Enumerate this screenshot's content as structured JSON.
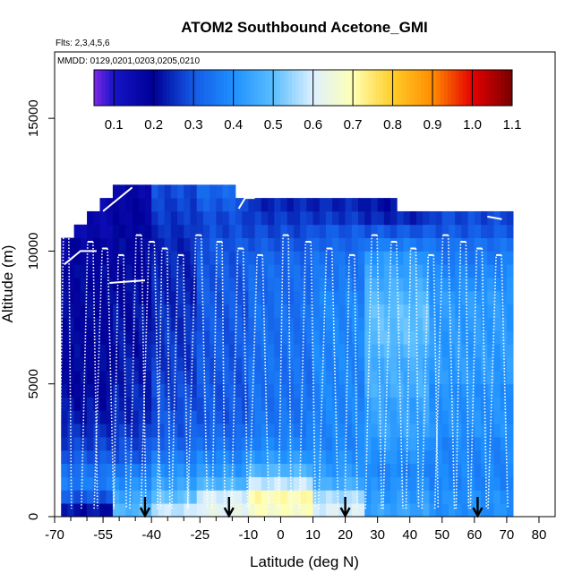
{
  "chart_data": {
    "type": "heatmap",
    "title": "ATOM2 Southbound Acetone_GMI",
    "flights_label": "Flts: 2,3,4,5,6",
    "dates_label": "MMDD: 0129,0201,0203,0205,0210",
    "xlabel": "Latitude (deg N)",
    "ylabel": "Altitude (m)",
    "xlim": [
      -70,
      85
    ],
    "ylim": [
      0,
      17500
    ],
    "x_ticks": [
      -70,
      -55,
      -40,
      -25,
      -10,
      0,
      10,
      20,
      30,
      40,
      50,
      60,
      70,
      80
    ],
    "x_tick_labels": [
      "-70",
      "-55",
      "-40",
      "-25",
      "-10",
      "0",
      "10",
      "20",
      "30",
      "40",
      "50",
      "60",
      "70",
      "80"
    ],
    "x_minor_ticks": [
      -65,
      -60,
      -50,
      -45,
      -35,
      -30,
      -20,
      -15,
      -5
    ],
    "y_ticks": [
      0,
      5000,
      10000,
      15000
    ],
    "y_tick_labels": [
      "0",
      "5000",
      "10000",
      "15000"
    ],
    "colorbar": {
      "min": 0.05,
      "max": 1.1,
      "ticks": [
        0.1,
        0.2,
        0.3,
        0.4,
        0.5,
        0.6,
        0.7,
        0.8,
        0.9,
        1.0,
        1.1
      ],
      "tick_labels": [
        "0.1",
        "0.2",
        "0.3",
        "0.4",
        "0.5",
        "0.6",
        "0.7",
        "0.8",
        "0.9",
        "1.0",
        "1.1"
      ]
    },
    "lat_bins": [
      -68,
      -66,
      -64,
      -62,
      -60,
      -58,
      -56,
      -54,
      -52,
      -50,
      -48,
      -46,
      -44,
      -42,
      -40,
      -38,
      -36,
      -34,
      -32,
      -30,
      -28,
      -26,
      -24,
      -22,
      -20,
      -18,
      -16,
      -14,
      -12,
      -10,
      -8,
      -6,
      -4,
      -2,
      0,
      2,
      4,
      6,
      8,
      10,
      12,
      14,
      16,
      18,
      20,
      22,
      24,
      26,
      28,
      30,
      32,
      34,
      36,
      38,
      40,
      42,
      44,
      46,
      48,
      50,
      52,
      54,
      56,
      58,
      60,
      62,
      64,
      66,
      68,
      70
    ],
    "bin_width_deg": 2,
    "alt_bins": [
      0,
      500,
      1000,
      1500,
      2000,
      2500,
      3000,
      3500,
      4000,
      4500,
      5000,
      5500,
      6000,
      6500,
      7000,
      7500,
      8000,
      8500,
      9000,
      9500,
      10000,
      10500,
      11000,
      11500,
      12000
    ],
    "bin_height_m": 500,
    "top_altitudes": [
      {
        "lat_from": -68,
        "lat_to": -64,
        "alt": 10500
      },
      {
        "lat_from": -64,
        "lat_to": -60,
        "alt": 11000
      },
      {
        "lat_from": -60,
        "lat_to": -56,
        "alt": 11500
      },
      {
        "lat_from": -56,
        "lat_to": -52,
        "alt": 12000
      },
      {
        "lat_from": -52,
        "lat_to": -14,
        "alt": 12500
      },
      {
        "lat_from": -14,
        "lat_to": 36,
        "alt": 12000
      },
      {
        "lat_from": 36,
        "lat_to": 70,
        "alt": 11500
      }
    ],
    "gradient_segments": [
      {
        "lat_from": -68,
        "lat_to": -52,
        "vals": [
          0.22,
          0.3,
          0.36,
          0.34,
          0.3,
          0.27,
          0.25,
          0.23,
          0.22,
          0.2,
          0.2,
          0.2,
          0.2,
          0.2,
          0.2,
          0.2,
          0.2,
          0.2,
          0.2,
          0.18,
          0.18,
          0.16,
          0.16,
          0.15,
          0.15
        ]
      },
      {
        "lat_from": -52,
        "lat_to": -40,
        "vals": [
          0.48,
          0.44,
          0.4,
          0.36,
          0.3,
          0.28,
          0.26,
          0.24,
          0.24,
          0.24,
          0.23,
          0.23,
          0.22,
          0.22,
          0.22,
          0.22,
          0.21,
          0.21,
          0.2,
          0.2,
          0.2,
          0.19,
          0.18,
          0.18,
          0.17
        ]
      },
      {
        "lat_from": -40,
        "lat_to": -26,
        "vals": [
          0.58,
          0.5,
          0.44,
          0.4,
          0.36,
          0.32,
          0.3,
          0.3,
          0.28,
          0.28,
          0.27,
          0.26,
          0.26,
          0.26,
          0.25,
          0.25,
          0.24,
          0.24,
          0.24,
          0.24,
          0.24,
          0.25,
          0.26,
          0.27,
          0.28
        ]
      },
      {
        "lat_from": -26,
        "lat_to": -10,
        "vals": [
          0.62,
          0.6,
          0.48,
          0.42,
          0.38,
          0.34,
          0.32,
          0.3,
          0.3,
          0.3,
          0.3,
          0.3,
          0.3,
          0.3,
          0.3,
          0.3,
          0.3,
          0.3,
          0.3,
          0.3,
          0.3,
          0.28,
          0.28,
          0.3,
          0.32
        ]
      },
      {
        "lat_from": -10,
        "lat_to": 10,
        "vals": [
          0.68,
          0.7,
          0.58,
          0.48,
          0.42,
          0.38,
          0.36,
          0.35,
          0.34,
          0.34,
          0.34,
          0.34,
          0.34,
          0.34,
          0.34,
          0.34,
          0.33,
          0.33,
          0.33,
          0.32,
          0.3,
          0.28,
          0.26,
          0.24,
          0.22
        ]
      },
      {
        "lat_from": 10,
        "lat_to": 26,
        "vals": [
          0.6,
          0.56,
          0.46,
          0.42,
          0.4,
          0.38,
          0.38,
          0.38,
          0.38,
          0.38,
          0.38,
          0.38,
          0.38,
          0.38,
          0.38,
          0.38,
          0.38,
          0.36,
          0.35,
          0.34,
          0.32,
          0.3,
          0.26,
          0.24,
          0.2
        ]
      },
      {
        "lat_from": 26,
        "lat_to": 46,
        "vals": [
          0.44,
          0.42,
          0.4,
          0.38,
          0.4,
          0.42,
          0.44,
          0.44,
          0.44,
          0.46,
          0.46,
          0.46,
          0.48,
          0.5,
          0.5,
          0.5,
          0.48,
          0.46,
          0.44,
          0.42,
          0.36,
          0.3,
          0.24,
          0.22,
          0.2
        ]
      },
      {
        "lat_from": 46,
        "lat_to": 70,
        "vals": [
          0.4,
          0.4,
          0.38,
          0.38,
          0.38,
          0.38,
          0.4,
          0.4,
          0.4,
          0.4,
          0.42,
          0.42,
          0.42,
          0.42,
          0.42,
          0.42,
          0.42,
          0.4,
          0.38,
          0.36,
          0.34,
          0.3,
          0.28,
          0.24,
          0.22
        ]
      }
    ],
    "flight_profile_latitudes": [
      -67,
      -59.5,
      -55,
      -50,
      -44.5,
      -40.5,
      -36.5,
      -31.5,
      -26,
      -19.5,
      -13,
      -7,
      1,
      8,
      14.5,
      21.5,
      28.5,
      34.5,
      40.5,
      46,
      50.5,
      56,
      61,
      67
    ],
    "flight_track_max_alt": 10600,
    "flight_track_low_alt": 300,
    "arrow_latitudes": [
      -42,
      -16,
      20,
      61
    ]
  }
}
